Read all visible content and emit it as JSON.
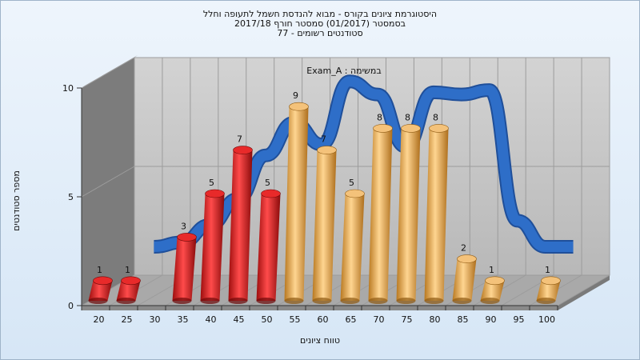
{
  "title": {
    "line1": "היסטוגרמת ציונים בקורס - מבוא להנדסת חשמל לתעופה וחלל",
    "line2": "בסמסטר  (01/2017)  סמסטר חורף  2017/18",
    "line3": "סטודנטים רשומים - 77"
  },
  "chart_data": {
    "type": "bar",
    "subtitle": "Exam_A : במשימה",
    "xlabel": "טווח ציונים",
    "ylabel": "מספר סטודנטים",
    "ylim": [
      0,
      10
    ],
    "yticks": [
      0,
      5,
      10
    ],
    "categories": [
      "20",
      "25",
      "30",
      "35",
      "40",
      "45",
      "50",
      "55",
      "60",
      "65",
      "70",
      "75",
      "80",
      "85",
      "90",
      "95",
      "100"
    ],
    "values": [
      1,
      1,
      null,
      3,
      5,
      7,
      5,
      9,
      7,
      5,
      8,
      8,
      8,
      2,
      1,
      null,
      1
    ],
    "fail_threshold": 55,
    "colors": {
      "fail": "#d42020",
      "pass": "#e8a84a",
      "curve": "#2e6ec8"
    },
    "curve": {
      "type": "line",
      "x": [
        "25",
        "30",
        "35",
        "40",
        "45",
        "50",
        "55",
        "60",
        "65",
        "70",
        "75",
        "80",
        "85",
        "90",
        "95",
        "100"
      ],
      "values": [
        1.6,
        1.8,
        2.6,
        3.8,
        5.8,
        7.3,
        6.3,
        9.2,
        8.6,
        6.2,
        8.7,
        8.6,
        8.8,
        2.8,
        1.6,
        1.6
      ]
    },
    "grid": true
  }
}
